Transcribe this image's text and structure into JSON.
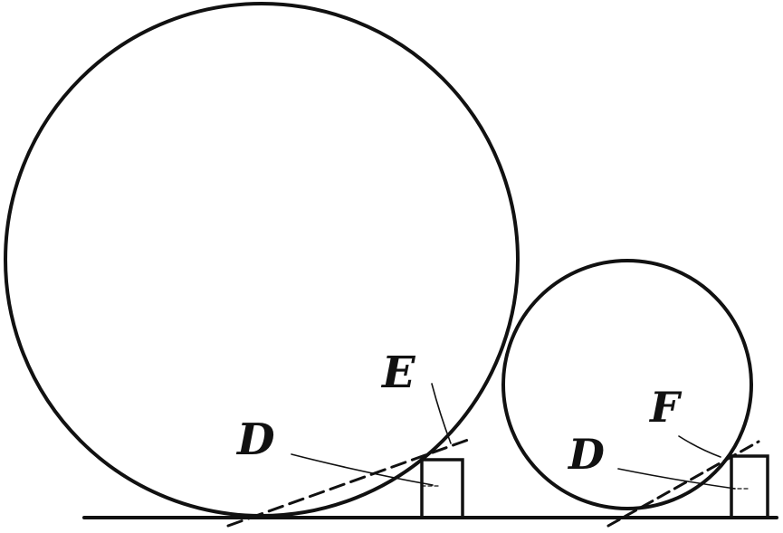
{
  "labels": {
    "large_wheel_tangent": "D",
    "large_wheel_block": "E",
    "small_wheel_tangent": "D",
    "small_wheel_block": "F"
  },
  "colors": {
    "ink": "#111111",
    "paper": "#ffffff"
  }
}
